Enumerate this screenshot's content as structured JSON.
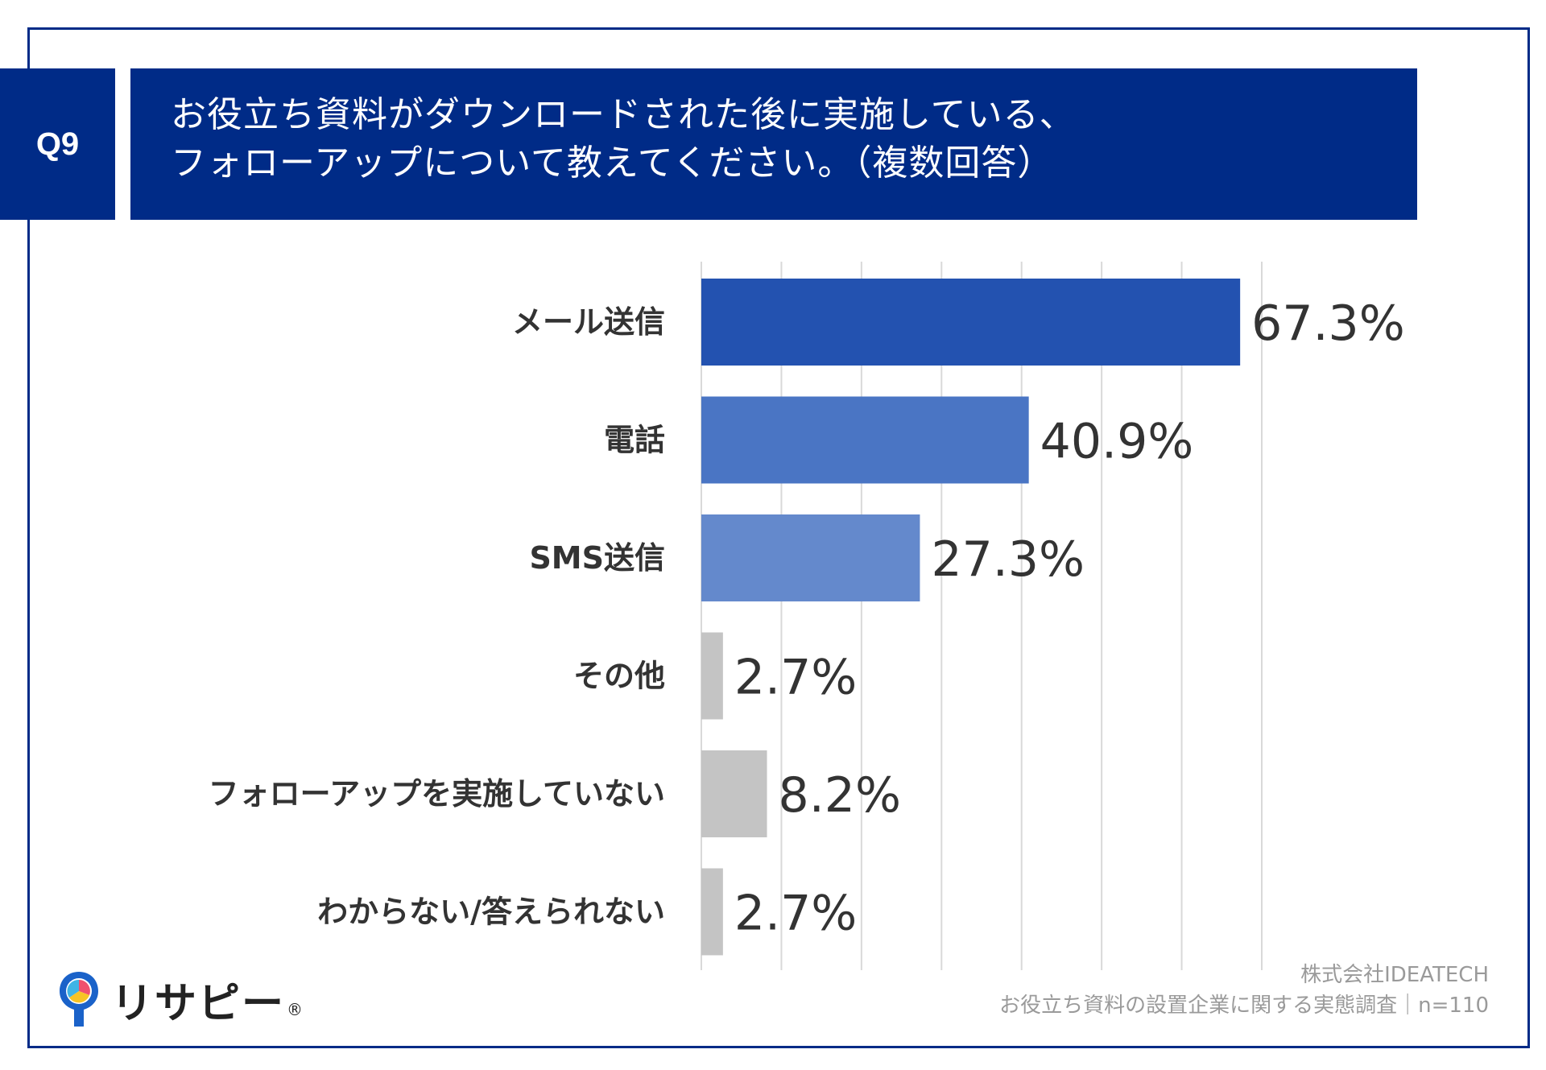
{
  "header": {
    "question_id": "Q9",
    "title_line1": "お役立ち資料がダウンロードされた後に実施している、",
    "title_line2": "フォローアップについて教えてください。（複数回答）"
  },
  "chart_data": {
    "type": "bar",
    "orientation": "horizontal",
    "categories": [
      "メール送信",
      "電話",
      "SMS送信",
      "その他",
      "フォローアップを実施していない",
      "わからない/答えられない"
    ],
    "values": [
      67.3,
      40.9,
      27.3,
      2.7,
      8.2,
      2.7
    ],
    "value_labels": [
      "67.3%",
      "40.9%",
      "27.3%",
      "2.7%",
      "8.2%",
      "2.7%"
    ],
    "bar_colors": [
      "#2352b0",
      "#4a75c4",
      "#6489cc",
      "#c4c4c4",
      "#c4c4c4",
      "#c4c4c4"
    ],
    "xlim": [
      0,
      70
    ],
    "grid": true,
    "grid_step": 10,
    "unit": "%"
  },
  "footer": {
    "company": "株式会社IDEATECH",
    "survey": "お役立ち資料の設置企業に関する実態調査｜n=110"
  },
  "logo": {
    "text": "リサピー",
    "mark": "®"
  },
  "colors": {
    "navy": "#002b87",
    "grid": "#d9d9d9",
    "label": "#333333",
    "source": "#9a9a9a"
  }
}
